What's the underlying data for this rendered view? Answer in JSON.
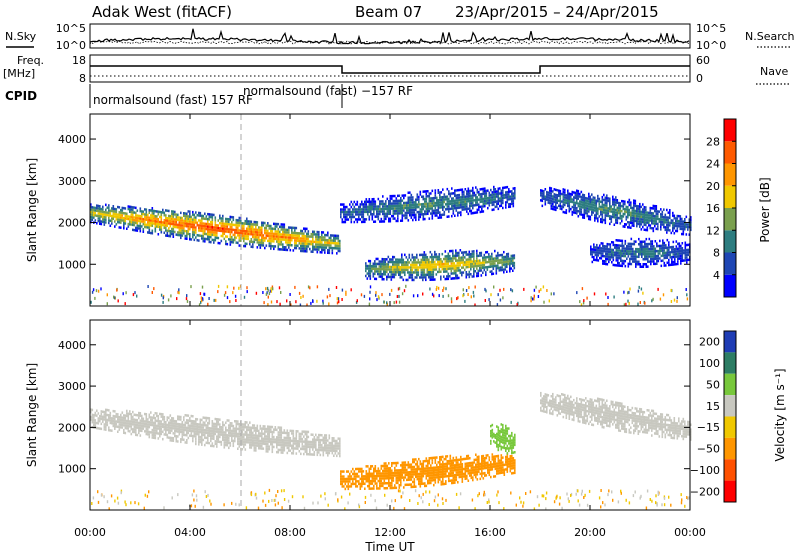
{
  "header": {
    "radar": "Adak West (fitACF)",
    "beam": "Beam 07",
    "date_range": "23/Apr/2015 – 24/Apr/2015"
  },
  "top_panel": {
    "left_label": "N.Sky",
    "left_ticks": [
      "10^5",
      "10^0"
    ],
    "right_ticks": [
      "10^5",
      "10^0"
    ],
    "right_label": "N.Search"
  },
  "freq_panel": {
    "left_label_1": "Freq.",
    "left_label_2": "[MHz]",
    "left_ticks": [
      "18",
      "8"
    ],
    "right_ticks": [
      "60",
      "0"
    ],
    "right_label": "Nave",
    "cpid_label": "CPID",
    "cpid_text_1": "normalsound (fast) 157 RF",
    "cpid_text_2": "normalsound (fast) −157 RF"
  },
  "chart_data": [
    {
      "type": "heatmap",
      "title": "",
      "xlabel": "Time UT",
      "ylabel": "Slant Range [km]",
      "x_ticks": [
        "00:00",
        "04:00",
        "08:00",
        "12:00",
        "16:00",
        "20:00",
        "00:00"
      ],
      "x_range_hours": [
        0,
        24
      ],
      "ylim": [
        0,
        4600
      ],
      "y_ticks": [
        1000,
        2000,
        3000,
        4000
      ],
      "colorbar": {
        "label": "Power [dB]",
        "ticks": [
          4,
          8,
          12,
          16,
          20,
          24,
          28
        ],
        "range": [
          0,
          32
        ],
        "colors": [
          "#0000ff",
          "#1e46b4",
          "#2d7d80",
          "#7aa04e",
          "#f0c800",
          "#ff9600",
          "#ff5a00",
          "#ff0000"
        ]
      },
      "features": [
        {
          "name": "main band",
          "t_start": 0.0,
          "t_end": 10.0,
          "range_start_km": 2200,
          "range_end_km": 1450,
          "peak_db": 28
        },
        {
          "name": "upper band",
          "t_start": 10.0,
          "t_end": 17.0,
          "range_start_km": 2200,
          "range_end_km": 2600,
          "peak_db": 12
        },
        {
          "name": "low band",
          "t_start": 11.0,
          "t_end": 17.0,
          "range_start_km": 850,
          "range_end_km": 1050,
          "peak_db": 20
        },
        {
          "name": "evening band",
          "t_start": 18.0,
          "t_end": 24.0,
          "range_start_km": 2600,
          "range_end_km": 1900,
          "peak_db": 12
        },
        {
          "name": "evening low band",
          "t_start": 20.0,
          "t_end": 24.0,
          "range_start_km": 1250,
          "range_end_km": 1250,
          "peak_db": 10
        }
      ]
    },
    {
      "type": "heatmap",
      "title": "",
      "xlabel": "Time UT",
      "ylabel": "Slant Range [km]",
      "x_ticks": [
        "00:00",
        "04:00",
        "08:00",
        "12:00",
        "16:00",
        "20:00",
        "00:00"
      ],
      "x_range_hours": [
        0,
        24
      ],
      "ylim": [
        0,
        4600
      ],
      "y_ticks": [
        1000,
        2000,
        3000,
        4000
      ],
      "colorbar": {
        "label": "Velocity [m s⁻¹]",
        "ticks": [
          "200",
          "100",
          "50",
          "15",
          "−15",
          "−50",
          "−100",
          "−200"
        ],
        "colors": [
          "#1e3cb4",
          "#2d7d64",
          "#78c83c",
          "#c8c8c0",
          "#f0c800",
          "#ff9600",
          "#ff5000",
          "#ff0000"
        ]
      },
      "features": [
        {
          "name": "main band",
          "t_start": 0.0,
          "t_end": 10.0,
          "range_start_km": 2200,
          "range_end_km": 1500,
          "velocity_ms": 0
        },
        {
          "name": "low band",
          "t_start": 10.0,
          "t_end": 17.0,
          "range_start_km": 700,
          "range_end_km": 1100,
          "velocity_ms": -60
        },
        {
          "name": "green patch",
          "t_start": 16.0,
          "t_end": 17.0,
          "range_start_km": 1800,
          "range_end_km": 1600,
          "velocity_ms": 60
        },
        {
          "name": "evening band",
          "t_start": 18.0,
          "t_end": 24.0,
          "range_start_km": 2600,
          "range_end_km": 1900,
          "velocity_ms": 0
        }
      ]
    }
  ]
}
